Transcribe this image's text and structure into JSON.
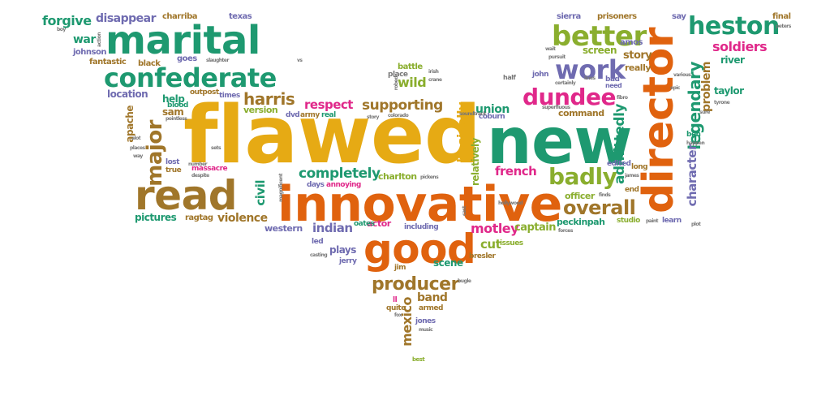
{
  "colors": {
    "orange": "#E0620E",
    "green": "#1E9970",
    "olive": "#8AAE2E",
    "brown": "#A0762A",
    "purple": "#6F6BB0",
    "pink": "#E0288A",
    "gold": "#E6AA14",
    "gray": "#777777"
  },
  "words": [
    {
      "text": "flawed",
      "color": "gold"
    },
    {
      "text": "new",
      "color": "green"
    },
    {
      "text": "innovative",
      "color": "orange"
    },
    {
      "text": "director",
      "color": "orange"
    },
    {
      "text": "marital",
      "color": "green"
    },
    {
      "text": "read",
      "color": "brown"
    },
    {
      "text": "good",
      "color": "orange"
    },
    {
      "text": "confederate",
      "color": "green"
    },
    {
      "text": "better",
      "color": "olive"
    },
    {
      "text": "work",
      "color": "purple"
    },
    {
      "text": "heston",
      "color": "green"
    },
    {
      "text": "dundee",
      "color": "pink"
    },
    {
      "text": "badly",
      "color": "olive"
    },
    {
      "text": "major",
      "color": "brown"
    },
    {
      "text": "overall",
      "color": "brown"
    },
    {
      "text": "producer",
      "color": "brown"
    },
    {
      "text": "completely",
      "color": "green"
    },
    {
      "text": "harris",
      "color": "brown"
    },
    {
      "text": "supporting",
      "color": "brown"
    },
    {
      "text": "admittedly",
      "color": "green"
    },
    {
      "text": "legendary",
      "color": "green"
    },
    {
      "text": "character",
      "color": "purple"
    },
    {
      "text": "soldiers",
      "color": "pink"
    },
    {
      "text": "respect",
      "color": "pink"
    },
    {
      "text": "forgive",
      "color": "green"
    },
    {
      "text": "disappear",
      "color": "purple"
    },
    {
      "text": "motley",
      "color": "pink"
    },
    {
      "text": "captain",
      "color": "olive"
    },
    {
      "text": "french",
      "color": "pink"
    },
    {
      "text": "violence",
      "color": "brown"
    },
    {
      "text": "indian",
      "color": "purple"
    },
    {
      "text": "basically",
      "color": "gold"
    },
    {
      "text": "mexico",
      "color": "brown"
    },
    {
      "text": "civil",
      "color": "green"
    },
    {
      "text": "wild",
      "color": "olive"
    },
    {
      "text": "union",
      "color": "green"
    },
    {
      "text": "relatively",
      "color": "olive"
    },
    {
      "text": "problem",
      "color": "brown"
    },
    {
      "text": "story",
      "color": "brown"
    },
    {
      "text": "screen",
      "color": "olive"
    },
    {
      "text": "war",
      "color": "green"
    },
    {
      "text": "help",
      "color": "green"
    },
    {
      "text": "sam",
      "color": "brown"
    },
    {
      "text": "apache",
      "color": "brown"
    },
    {
      "text": "river",
      "color": "green"
    },
    {
      "text": "taylor",
      "color": "green"
    },
    {
      "text": "location",
      "color": "purple"
    },
    {
      "text": "pictures",
      "color": "green"
    },
    {
      "text": "ragtag",
      "color": "brown"
    },
    {
      "text": "western",
      "color": "purple"
    },
    {
      "text": "actor",
      "color": "pink"
    },
    {
      "text": "cut",
      "color": "olive"
    },
    {
      "text": "band",
      "color": "brown"
    },
    {
      "text": "scene",
      "color": "green"
    },
    {
      "text": "plays",
      "color": "purple"
    },
    {
      "text": "charlton",
      "color": "olive"
    },
    {
      "text": "version",
      "color": "olive"
    },
    {
      "text": "command",
      "color": "brown"
    },
    {
      "text": "officer",
      "color": "olive"
    },
    {
      "text": "peckinpah",
      "color": "green"
    },
    {
      "text": "really",
      "color": "brown"
    },
    {
      "text": "fantastic",
      "color": "brown"
    },
    {
      "text": "johnson",
      "color": "purple"
    },
    {
      "text": "black",
      "color": "brown"
    },
    {
      "text": "goes",
      "color": "purple"
    },
    {
      "text": "charriba",
      "color": "brown"
    },
    {
      "text": "texas",
      "color": "purple"
    },
    {
      "text": "sierra",
      "color": "purple"
    },
    {
      "text": "prisoners",
      "color": "brown"
    },
    {
      "text": "final",
      "color": "brown"
    },
    {
      "text": "amos",
      "color": "purple"
    },
    {
      "text": "say",
      "color": "purple"
    },
    {
      "text": "battle",
      "color": "olive"
    },
    {
      "text": "place",
      "color": "gray"
    },
    {
      "text": "john",
      "color": "purple"
    },
    {
      "text": "outpost",
      "color": "brown"
    },
    {
      "text": "blood",
      "color": "green"
    },
    {
      "text": "times",
      "color": "purple"
    },
    {
      "text": "dvd",
      "color": "purple"
    },
    {
      "text": "army",
      "color": "brown"
    },
    {
      "text": "real",
      "color": "green"
    },
    {
      "text": "coburn",
      "color": "purple"
    },
    {
      "text": "massacre",
      "color": "pink"
    },
    {
      "text": "days",
      "color": "purple"
    },
    {
      "text": "annoying",
      "color": "pink"
    },
    {
      "text": "lost",
      "color": "purple"
    },
    {
      "text": "true",
      "color": "brown"
    },
    {
      "text": "edited",
      "color": "purple"
    },
    {
      "text": "long",
      "color": "brown"
    },
    {
      "text": "end",
      "color": "brown"
    },
    {
      "text": "ben",
      "color": "green"
    },
    {
      "text": "issues",
      "color": "olive"
    },
    {
      "text": "bresler",
      "color": "brown"
    },
    {
      "text": "oates",
      "color": "green"
    },
    {
      "text": "including",
      "color": "purple"
    },
    {
      "text": "studio",
      "color": "olive"
    },
    {
      "text": "learn",
      "color": "purple"
    },
    {
      "text": "jerry",
      "color": "purple"
    },
    {
      "text": "jim",
      "color": "brown"
    },
    {
      "text": "led",
      "color": "purple"
    },
    {
      "text": "quite",
      "color": "brown"
    },
    {
      "text": "armed",
      "color": "brown"
    },
    {
      "text": "jones",
      "color": "purple"
    },
    {
      "text": "ll",
      "color": "pink"
    },
    {
      "text": "bad",
      "color": "purple"
    },
    {
      "text": "need",
      "color": "purple"
    },
    {
      "text": "half",
      "color": "gray"
    },
    {
      "text": "best",
      "color": "olive"
    },
    {
      "text": "music",
      "color": "gray"
    },
    {
      "text": "fox",
      "color": "gray"
    },
    {
      "text": "bugle",
      "color": "gray"
    },
    {
      "text": "hollywood",
      "color": "gray"
    },
    {
      "text": "pickens",
      "color": "gray"
    },
    {
      "text": "forces",
      "color": "gray"
    },
    {
      "text": "paint",
      "color": "gray"
    },
    {
      "text": "epic",
      "color": "gray"
    },
    {
      "text": "tyrone",
      "color": "gray"
    },
    {
      "text": "happen",
      "color": "gray"
    },
    {
      "text": "lines",
      "color": "gray"
    },
    {
      "text": "fibro",
      "color": "gray"
    },
    {
      "text": "certainly",
      "color": "gray"
    },
    {
      "text": "wait",
      "color": "gray"
    },
    {
      "text": "pursuit",
      "color": "gray"
    },
    {
      "text": "superfluous",
      "color": "gray"
    },
    {
      "text": "soundtrack",
      "color": "gray"
    },
    {
      "text": "colorado",
      "color": "gray"
    },
    {
      "text": "story",
      "color": "gray"
    },
    {
      "text": "robed",
      "color": "gray"
    },
    {
      "text": "irish",
      "color": "gray"
    },
    {
      "text": "crane",
      "color": "gray"
    },
    {
      "text": "slaughter",
      "color": "gray"
    },
    {
      "text": "pointless",
      "color": "gray"
    },
    {
      "text": "places",
      "color": "gray"
    },
    {
      "text": "despite",
      "color": "gray"
    },
    {
      "text": "number",
      "color": "gray"
    },
    {
      "text": "sets",
      "color": "gray"
    },
    {
      "text": "magnificent",
      "color": "gray"
    },
    {
      "text": "casting",
      "color": "gray"
    },
    {
      "text": "boy",
      "color": "gray"
    },
    {
      "text": "action",
      "color": "gray"
    },
    {
      "text": "finds",
      "color": "gray"
    },
    {
      "text": "james",
      "color": "gray"
    },
    {
      "text": "plot",
      "color": "gray"
    },
    {
      "text": "various",
      "color": "gray"
    },
    {
      "text": "peters",
      "color": "gray"
    },
    {
      "text": "cast",
      "color": "gray"
    },
    {
      "text": "alot",
      "color": "gray"
    },
    {
      "text": "vs",
      "color": "gray"
    },
    {
      "text": "way",
      "color": "gray"
    },
    {
      "text": "sure",
      "color": "gray"
    }
  ]
}
